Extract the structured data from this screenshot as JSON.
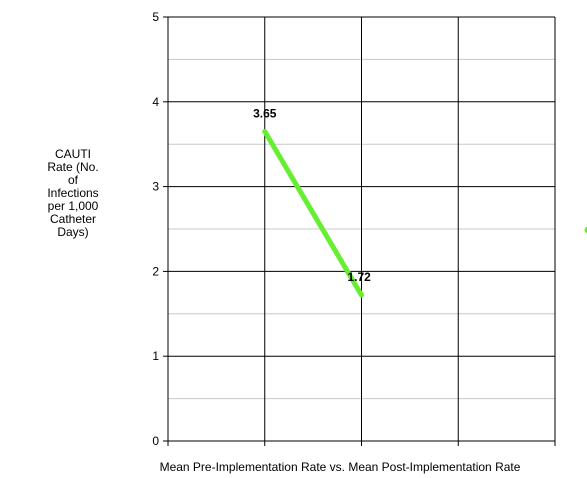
{
  "chart_data": {
    "type": "line",
    "title": "",
    "xlabel": "Mean Pre-Implementation Rate vs. Mean Post-Implementation Rate",
    "ylabel_lines": [
      "CAUTI",
      "Rate (No.",
      "of",
      "Infections",
      "per 1,000",
      "Catheter",
      "Days)"
    ],
    "ylim": [
      0,
      5
    ],
    "yticks": [
      0,
      1,
      2,
      3,
      4,
      5
    ],
    "y_minor_gridlines": true,
    "grid": true,
    "x_categories": 4,
    "series": [
      {
        "color": "#66ee33",
        "points": [
          {
            "x": 1,
            "y": 3.65,
            "label": "3.65"
          },
          {
            "x": 2,
            "y": 1.72,
            "label": "1.72"
          }
        ]
      }
    ]
  }
}
